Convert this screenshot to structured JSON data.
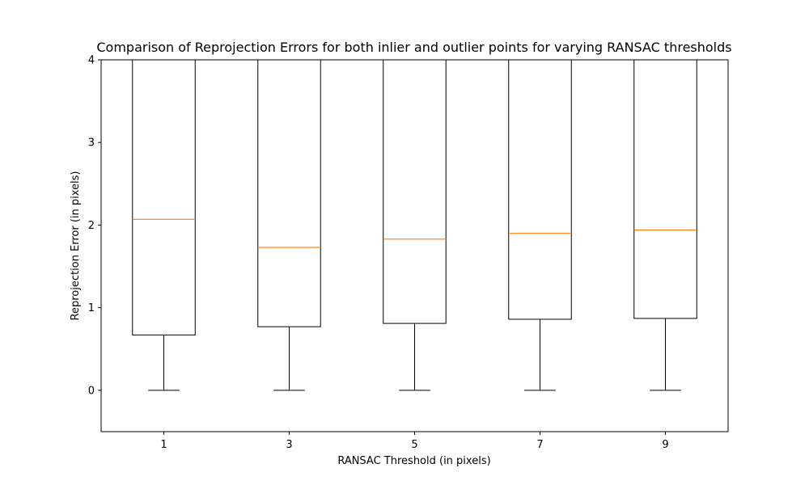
{
  "chart_data": {
    "type": "box",
    "title": "Comparison of Reprojection Errors for both inlier and outlier points for varying RANSAC thresholds",
    "xlabel": "RANSAC Threshold (in pixels)",
    "ylabel": "Reprojection Error (in pixels)",
    "ylim": [
      -0.5,
      4.0
    ],
    "y_ticks": [
      0,
      1,
      2,
      3,
      4
    ],
    "categories": [
      "1",
      "3",
      "5",
      "7",
      "9"
    ],
    "boxes": [
      {
        "label": "1",
        "whisker_low": 0.0,
        "q1": 0.67,
        "median": 2.07,
        "q3": 4.0
      },
      {
        "label": "3",
        "whisker_low": 0.0,
        "q1": 0.77,
        "median": 1.73,
        "q3": 4.0
      },
      {
        "label": "5",
        "whisker_low": 0.0,
        "q1": 0.81,
        "median": 1.83,
        "q3": 4.0
      },
      {
        "label": "7",
        "whisker_low": 0.0,
        "q1": 0.86,
        "median": 1.9,
        "q3": 4.0
      },
      {
        "label": "9",
        "whisker_low": 0.0,
        "q1": 0.87,
        "median": 1.94,
        "q3": 4.0
      }
    ],
    "colors": {
      "box": "#000000",
      "median": "#ff7f0e",
      "whisker": "#000000"
    },
    "grid": false,
    "legend": "none"
  }
}
